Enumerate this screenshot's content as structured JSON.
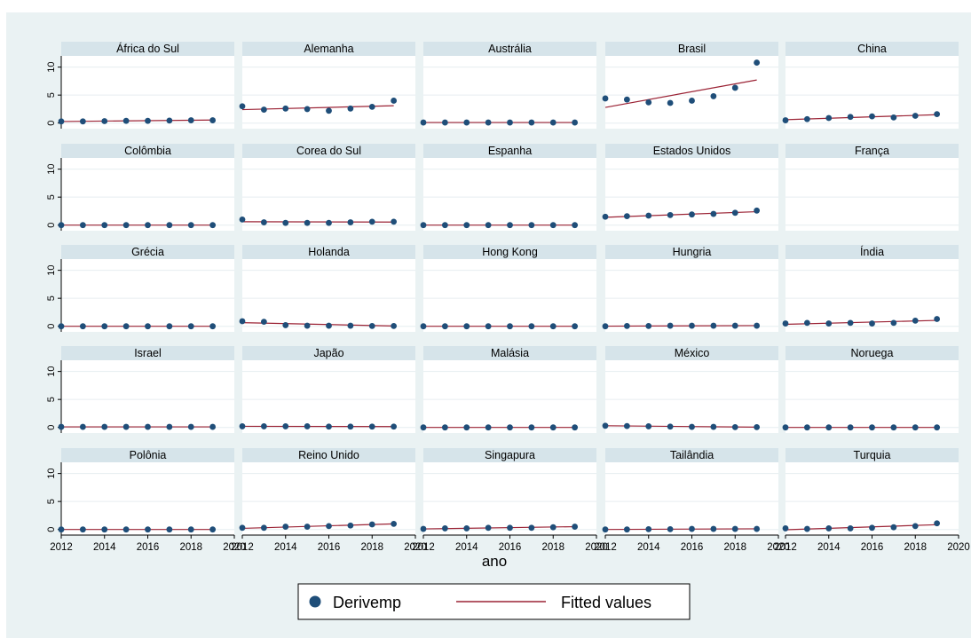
{
  "caption": "",
  "chart_data": {
    "type": "scatter",
    "xlabel": "ano",
    "ylabel": "",
    "xlim": [
      2012,
      2020
    ],
    "ylim": [
      -1,
      12
    ],
    "x_ticks": [
      "2012",
      "2014",
      "2016",
      "2018",
      "2020"
    ],
    "y_ticks": [
      "0",
      "5",
      "10"
    ],
    "x": [
      2012,
      2013,
      2014,
      2015,
      2016,
      2017,
      2018,
      2019
    ],
    "grid": true,
    "legend": {
      "position": "bottom",
      "entries": [
        {
          "label": "Derivemp",
          "kind": "marker",
          "color": "#1f4e79"
        },
        {
          "label": "Fitted values",
          "kind": "line",
          "color": "#9b2335"
        }
      ]
    },
    "colors": {
      "background": "#eaf2f3",
      "plot_area": "#ffffff",
      "panel_header": "#d6e4ea",
      "marker": "#1f4e79",
      "fit_line": "#9b2335",
      "grid": "#e6eef0"
    },
    "panels": [
      {
        "name": "África do Sul",
        "values": [
          0.3,
          0.3,
          0.35,
          0.4,
          0.4,
          0.45,
          0.5,
          0.5
        ],
        "fit": [
          0.28,
          0.55
        ]
      },
      {
        "name": "Alemanha",
        "values": [
          3.0,
          2.4,
          2.6,
          2.5,
          2.2,
          2.6,
          2.9,
          4.0
        ],
        "fit": [
          2.4,
          3.1
        ]
      },
      {
        "name": "Austrália",
        "values": [
          0.1,
          0.1,
          0.1,
          0.1,
          0.1,
          0.1,
          0.1,
          0.1
        ],
        "fit": [
          0.1,
          0.1
        ]
      },
      {
        "name": "Brasil",
        "values": [
          4.4,
          4.2,
          3.7,
          3.6,
          4.0,
          4.8,
          6.3,
          10.8
        ],
        "fit": [
          2.8,
          7.7
        ]
      },
      {
        "name": "China",
        "values": [
          0.5,
          0.7,
          0.9,
          1.1,
          1.2,
          1.0,
          1.3,
          1.6
        ],
        "fit": [
          0.6,
          1.5
        ]
      },
      {
        "name": "Colômbia",
        "values": [
          0.0,
          0.0,
          0.0,
          0.0,
          0.0,
          0.0,
          0.0,
          0.0
        ],
        "fit": [
          0.0,
          0.0
        ]
      },
      {
        "name": "Corea do Sul",
        "values": [
          1.0,
          0.5,
          0.4,
          0.4,
          0.4,
          0.5,
          0.6,
          0.6
        ],
        "fit": [
          0.6,
          0.55
        ]
      },
      {
        "name": "Espanha",
        "values": [
          0.0,
          0.0,
          0.0,
          0.0,
          0.0,
          0.0,
          0.0,
          0.0
        ],
        "fit": [
          0.0,
          0.0
        ]
      },
      {
        "name": "Estados Unidos",
        "values": [
          1.5,
          1.6,
          1.7,
          1.8,
          1.9,
          2.0,
          2.2,
          2.6
        ],
        "fit": [
          1.4,
          2.4
        ]
      },
      {
        "name": "França",
        "values": [],
        "fit": null
      },
      {
        "name": "Grécia",
        "values": [
          0.0,
          0.0,
          0.0,
          0.0,
          0.0,
          0.0,
          0.0,
          0.0
        ],
        "fit": [
          0.0,
          0.0
        ]
      },
      {
        "name": "Holanda",
        "values": [
          0.9,
          0.8,
          0.2,
          0.1,
          0.1,
          0.1,
          0.05,
          0.05
        ],
        "fit": [
          0.65,
          0.05
        ]
      },
      {
        "name": "Hong Kong",
        "values": [
          0.0,
          0.0,
          0.0,
          0.0,
          0.0,
          0.0,
          0.0,
          0.0
        ],
        "fit": [
          0.0,
          0.0
        ]
      },
      {
        "name": "Hungria",
        "values": [
          0.0,
          0.05,
          0.05,
          0.1,
          0.1,
          0.1,
          0.1,
          0.1
        ],
        "fit": [
          0.02,
          0.12
        ]
      },
      {
        "name": "Índia",
        "values": [
          0.5,
          0.6,
          0.5,
          0.6,
          0.5,
          0.6,
          1.0,
          1.3
        ],
        "fit": [
          0.35,
          1.05
        ]
      },
      {
        "name": "Israel",
        "values": [
          0.1,
          0.1,
          0.1,
          0.1,
          0.1,
          0.1,
          0.1,
          0.1
        ],
        "fit": [
          0.1,
          0.1
        ]
      },
      {
        "name": "Japão",
        "values": [
          0.2,
          0.2,
          0.2,
          0.2,
          0.15,
          0.15,
          0.15,
          0.15
        ],
        "fit": [
          0.2,
          0.15
        ]
      },
      {
        "name": "Malásia",
        "values": [
          0.0,
          0.0,
          0.0,
          0.0,
          0.0,
          0.0,
          0.0,
          0.0
        ],
        "fit": [
          0.0,
          0.0
        ]
      },
      {
        "name": "México",
        "values": [
          0.3,
          0.25,
          0.2,
          0.15,
          0.1,
          0.1,
          0.05,
          0.05
        ],
        "fit": [
          0.3,
          0.05
        ]
      },
      {
        "name": "Noruega",
        "values": [
          0.0,
          0.0,
          0.0,
          0.0,
          0.0,
          0.0,
          0.0,
          0.0
        ],
        "fit": [
          0.0,
          0.0
        ]
      },
      {
        "name": "Polônia",
        "values": [
          0.0,
          0.0,
          0.0,
          0.0,
          0.0,
          0.0,
          0.0,
          0.0
        ],
        "fit": [
          0.0,
          0.0
        ]
      },
      {
        "name": "Reino Unido",
        "values": [
          0.3,
          0.3,
          0.5,
          0.5,
          0.6,
          0.7,
          0.9,
          1.0
        ],
        "fit": [
          0.2,
          1.0
        ]
      },
      {
        "name": "Singapura",
        "values": [
          0.1,
          0.2,
          0.2,
          0.3,
          0.3,
          0.3,
          0.4,
          0.5
        ],
        "fit": [
          0.1,
          0.5
        ]
      },
      {
        "name": "Tailândia",
        "values": [
          0.0,
          0.0,
          0.05,
          0.05,
          0.1,
          0.1,
          0.1,
          0.1
        ],
        "fit": [
          0.0,
          0.12
        ]
      },
      {
        "name": "Turquia",
        "values": [
          0.2,
          0.1,
          0.2,
          0.2,
          0.3,
          0.4,
          0.6,
          1.1
        ],
        "fit": [
          -0.05,
          0.85
        ]
      }
    ]
  }
}
